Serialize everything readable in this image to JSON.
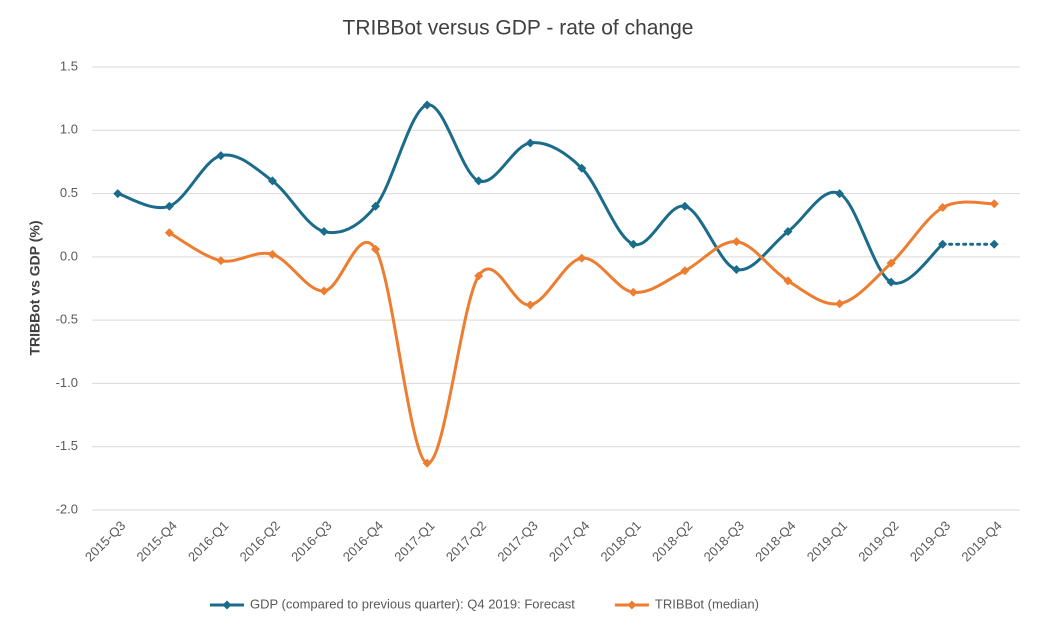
{
  "chart_data": {
    "type": "line",
    "title": "TRIBBot versus GDP - rate of change",
    "y_label": "TRIBBot vs GDP (%)",
    "categories": [
      "2015-Q3",
      "2015-Q4",
      "2016-Q1",
      "2016-Q2",
      "2016-Q3",
      "2016-Q4",
      "2017-Q1",
      "2017-Q2",
      "2017-Q3",
      "2017-Q4",
      "2018-Q1",
      "2018-Q2",
      "2018-Q3",
      "2018-Q4",
      "2019-Q1",
      "2019-Q2",
      "2019-Q3",
      "2019-Q4"
    ],
    "series": [
      {
        "name": "GDP (compared to previous quarter): Q4 2019: Forecast",
        "color": "#1b6b8b",
        "last_segment_style": "dotted",
        "values": [
          0.5,
          0.4,
          0.8,
          0.6,
          0.2,
          0.4,
          1.2,
          0.6,
          0.9,
          0.7,
          0.1,
          0.4,
          -0.1,
          0.2,
          0.5,
          -0.2,
          0.1,
          0.1
        ]
      },
      {
        "name": "TRIBBot (median)",
        "color": "#ed7d31",
        "values": [
          null,
          0.19,
          -0.03,
          0.02,
          -0.27,
          0.06,
          -1.63,
          -0.15,
          -0.38,
          -0.01,
          -0.28,
          -0.11,
          0.12,
          -0.19,
          -0.37,
          -0.05,
          0.39,
          0.42
        ]
      }
    ],
    "ylim": [
      -2,
      1.5
    ],
    "yticks": [
      {
        "value": -2,
        "label": "-2.0"
      },
      -1.5,
      {
        "value": -1,
        "label": "-1.0"
      },
      -0.5,
      {
        "value": 0,
        "label": "0.0"
      },
      0.5,
      {
        "value": 1,
        "label": "1.0"
      },
      1.5
    ],
    "grid": true,
    "legend": "bottom"
  }
}
